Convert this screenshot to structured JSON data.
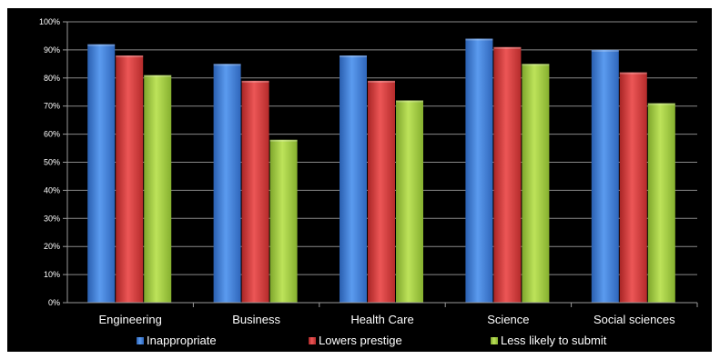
{
  "chart_data": {
    "type": "bar",
    "title": "",
    "xlabel": "",
    "ylabel": "",
    "categories": [
      "Engineering",
      "Business",
      "Health Care",
      "Science",
      "Social sciences"
    ],
    "series": [
      {
        "name": "Inappropriate",
        "color": "#3f7fd6",
        "values": [
          92,
          85,
          88,
          94,
          90
        ]
      },
      {
        "name": "Lowers prestige",
        "color": "#d63a3a",
        "values": [
          88,
          79,
          79,
          91,
          82
        ]
      },
      {
        "name": "Less likely to submit",
        "color": "#a5d040",
        "values": [
          81,
          58,
          72,
          85,
          71
        ]
      }
    ],
    "ylim": [
      0,
      100
    ],
    "y_ticks": [
      "0%",
      "10%",
      "20%",
      "30%",
      "40%",
      "50%",
      "60%",
      "70%",
      "80%",
      "90%",
      "100%"
    ],
    "grid": true,
    "legend_position": "bottom",
    "background": "#000000"
  }
}
